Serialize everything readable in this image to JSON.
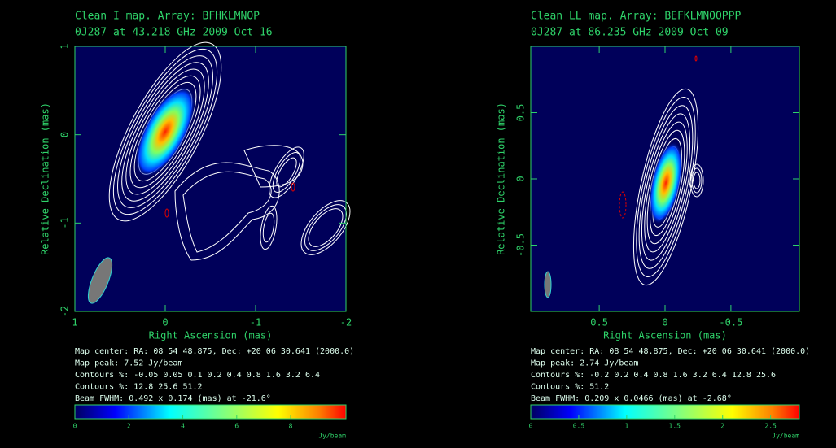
{
  "chart_data": [
    {
      "type": "map",
      "title": "Clean I map.  Array:  BFHKLMNOP",
      "subtitle": "0J287 at 43.218 GHz 2009 Oct 16",
      "xlabel": "Right Ascension   (mas)",
      "ylabel": "Relative Declination   (mas)",
      "xlim": [
        1,
        -2
      ],
      "xticks": [
        1,
        0,
        -1,
        -2
      ],
      "ylim": [
        -2,
        1
      ],
      "yticks": [
        -2,
        -1,
        0,
        1
      ],
      "info": [
        "Map center:  RA: 08 54 48.875,  Dec: +20 06 30.641 (2000.0)",
        "Map peak: 7.52 Jy/beam",
        "Contours %: -0.05 0.05 0.1 0.2 0.4 0.8 1.6 3.2 6.4",
        "Contours %: 12.8 25.6 51.2",
        "Beam FWHM: 0.492 x 0.174 (mas) at -21.6°"
      ],
      "colorbar": {
        "lim": [
          0,
          10.05
        ],
        "ticks": [
          0,
          2,
          4,
          6,
          8
        ],
        "label": "Jy/beam"
      }
    },
    {
      "type": "map",
      "title": "Clean LL map.  Array:  BEFKLMNOOPPP",
      "subtitle": "0J287 at 86.235 GHz 2009 Oct 09",
      "xlabel": "Right Ascension   (mas)",
      "ylabel": "Relative Declination   (mas)",
      "xlim": [
        1.02,
        -1.02
      ],
      "xticks": [
        0.5,
        0,
        -0.5
      ],
      "ylim": [
        -1,
        1
      ],
      "yticks": [
        -0.5,
        0,
        0.5
      ],
      "info": [
        "Map center:  RA: 08 54 48.875,  Dec: +20 06 30.641 (2000.0)",
        "Map peak: 2.74 Jy/beam",
        "Contours %: -0.2 0.2 0.4 0.8 1.6 3.2 6.4 12.8 25.6",
        "Contours %: 51.2",
        "Beam FWHM: 0.209 x 0.0466 (mas) at -2.68°"
      ],
      "colorbar": {
        "lim": [
          0,
          2.8
        ],
        "ticks": [
          0,
          0.5,
          1,
          1.5,
          2,
          2.5
        ],
        "label": "Jy/beam"
      }
    }
  ]
}
